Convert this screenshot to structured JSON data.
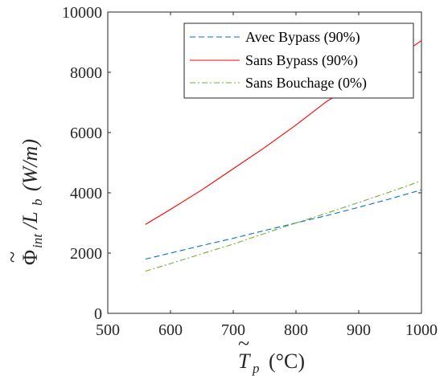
{
  "chart_data": {
    "type": "line",
    "xlabel": {
      "symbol": "T",
      "subscript": "p",
      "unit": "(°C)"
    },
    "ylabel": {
      "symbol": "Φ",
      "subscript1": "int",
      "divider": "/L",
      "subscript2": "b",
      "unit": "(W/m)"
    },
    "xlim": [
      500,
      1000
    ],
    "ylim": [
      0,
      10000
    ],
    "xticks": [
      "500",
      "600",
      "700",
      "800",
      "900",
      "1000"
    ],
    "yticks": [
      "0",
      "2000",
      "4000",
      "6000",
      "8000",
      "10000"
    ],
    "grid": false,
    "legend_position": "top-right",
    "series": [
      {
        "name": "Avec Bypass (90%)",
        "color": "#0072BD",
        "style": "dashed",
        "x": [
          560,
          600,
          650,
          700,
          750,
          800,
          850,
          900,
          950,
          1000
        ],
        "y": [
          1800,
          2000,
          2250,
          2490,
          2750,
          3000,
          3250,
          3520,
          3800,
          4100
        ]
      },
      {
        "name": "Sans Bypass (90%)",
        "color": "#FF0000",
        "style": "solid",
        "x": [
          560,
          600,
          650,
          700,
          750,
          800,
          850,
          900,
          950,
          1000
        ],
        "y": [
          2950,
          3450,
          4100,
          4800,
          5500,
          6250,
          7050,
          7650,
          8350,
          9050
        ]
      },
      {
        "name": "Sans Bouchage (0%)",
        "color": "#77AC30",
        "style": "dashdot",
        "x": [
          560,
          600,
          650,
          700,
          750,
          800,
          850,
          900,
          950,
          1000
        ],
        "y": [
          1400,
          1650,
          1980,
          2300,
          2650,
          3000,
          3330,
          3680,
          4030,
          4400
        ]
      }
    ]
  }
}
